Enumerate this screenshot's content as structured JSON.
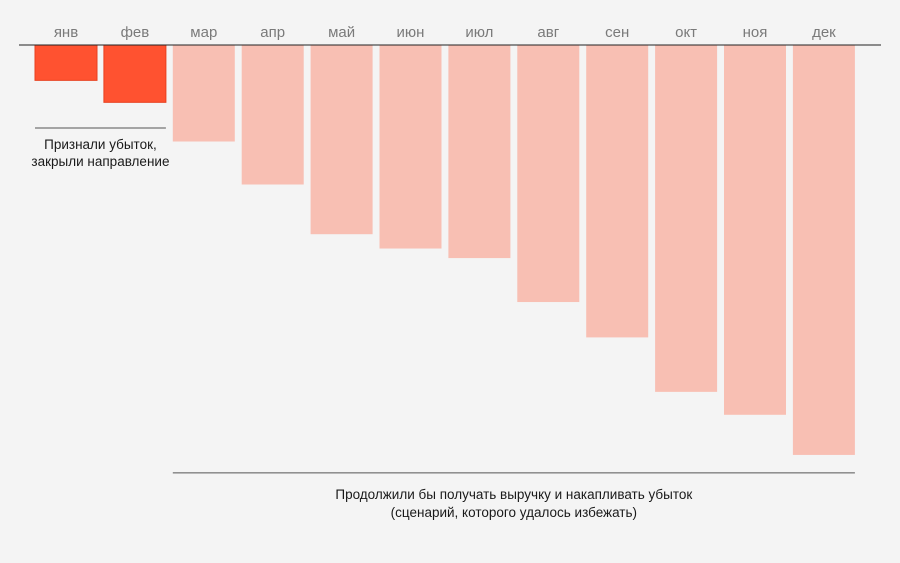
{
  "chart_data": {
    "type": "bar",
    "orientation": "downward",
    "categories": [
      "янв",
      "фев",
      "мар",
      "апр",
      "май",
      "июн",
      "июл",
      "авг",
      "сен",
      "окт",
      "ноя",
      "дек"
    ],
    "values": [
      -37,
      -60,
      -101,
      -146,
      -198,
      -213,
      -223,
      -269,
      -306,
      -363,
      -387,
      -429
    ],
    "series_split": {
      "realized": [
        "янв",
        "фев"
      ],
      "avoided": [
        "мар",
        "апр",
        "май",
        "июн",
        "июл",
        "авг",
        "сен",
        "окт",
        "ноя",
        "дек"
      ]
    },
    "ylim": [
      -450,
      0
    ],
    "grid": false,
    "legend": "none",
    "colors": {
      "realized": "#ff5230",
      "realized_stroke": "#e8401f",
      "avoided": "#f8bfb3",
      "axis": "#222222",
      "background": "#f4f4f4"
    },
    "annotations": {
      "realized": {
        "line1": "Признали убыток,",
        "line2": "закрыли направление"
      },
      "avoided": {
        "line1": "Продолжили бы получать выручку и накапливать убыток",
        "line2": "(сценарий, которого удалось избежать)"
      }
    }
  }
}
